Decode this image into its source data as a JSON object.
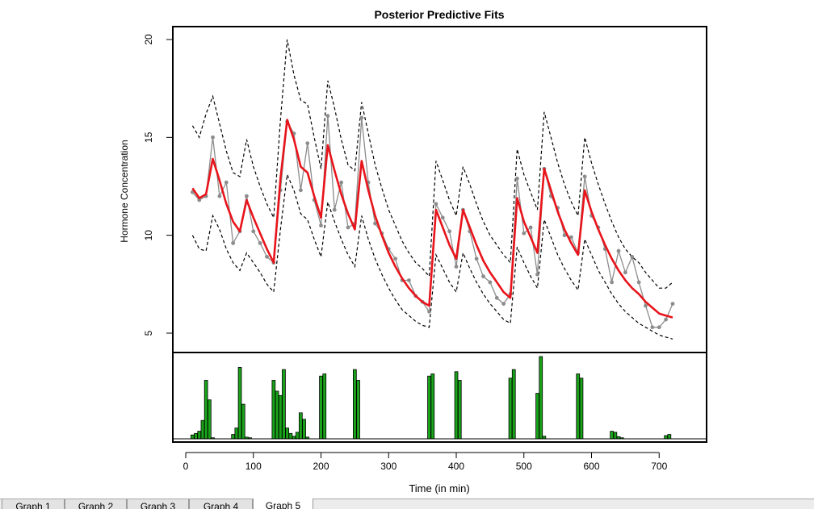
{
  "chart_data": {
    "type": "line",
    "title": "Posterior Predictive Fits",
    "xlabel": "Time (in min)",
    "ylabel": "Hormone Concentration",
    "xlim": [
      0,
      720
    ],
    "ylim": [
      4,
      20.5
    ],
    "xticks": [
      0,
      100,
      200,
      300,
      400,
      500,
      600,
      700
    ],
    "yticks": [
      5,
      10,
      15,
      20
    ],
    "x": [
      10,
      20,
      30,
      40,
      50,
      60,
      70,
      80,
      90,
      100,
      110,
      120,
      130,
      140,
      150,
      160,
      170,
      180,
      190,
      200,
      210,
      220,
      230,
      240,
      250,
      260,
      270,
      280,
      290,
      300,
      310,
      320,
      330,
      340,
      350,
      360,
      370,
      380,
      390,
      400,
      410,
      420,
      430,
      440,
      450,
      460,
      470,
      480,
      490,
      500,
      510,
      520,
      530,
      540,
      550,
      560,
      570,
      580,
      590,
      600,
      610,
      620,
      630,
      640,
      650,
      660,
      670,
      680,
      690,
      700,
      710,
      720
    ],
    "series": [
      {
        "role": "observed",
        "color": "#8c8c8c",
        "values": [
          12.2,
          11.8,
          12.0,
          15.0,
          12.0,
          12.7,
          9.6,
          10.2,
          12.0,
          10.2,
          9.6,
          8.9,
          8.6,
          12.3,
          15.8,
          15.2,
          12.3,
          14.7,
          11.8,
          10.5,
          16.1,
          11.3,
          12.7,
          10.4,
          10.6,
          16.0,
          12.7,
          10.6,
          10.1,
          9.3,
          8.8,
          7.7,
          7.7,
          6.9,
          6.6,
          6.1,
          11.6,
          10.9,
          10.2,
          8.4,
          11.3,
          10.2,
          8.8,
          7.9,
          7.6,
          6.8,
          6.5,
          7.0,
          12.9,
          10.1,
          10.4,
          8.0,
          13.4,
          12.0,
          11.4,
          10.0,
          9.9,
          9.1,
          13.0,
          11.0,
          10.4,
          9.3,
          7.6,
          9.2,
          8.1,
          8.9,
          7.6,
          6.4,
          5.3,
          5.3,
          5.7,
          6.5
        ]
      },
      {
        "role": "posterior mean",
        "color": "#e8141b",
        "values": [
          12.4,
          11.9,
          12.1,
          13.9,
          12.8,
          11.6,
          10.7,
          10.2,
          11.8,
          10.9,
          10.1,
          9.3,
          8.6,
          12.9,
          15.9,
          14.9,
          13.5,
          13.2,
          12.0,
          10.9,
          14.6,
          13.3,
          12.1,
          11.1,
          10.3,
          13.8,
          12.3,
          11.0,
          10.0,
          9.1,
          8.4,
          7.8,
          7.3,
          6.9,
          6.6,
          6.4,
          11.3,
          10.4,
          9.5,
          8.8,
          11.3,
          10.4,
          9.5,
          8.7,
          8.1,
          7.6,
          7.1,
          6.8,
          11.9,
          10.7,
          9.9,
          9.1,
          13.4,
          12.3,
          11.2,
          10.3,
          9.6,
          9.0,
          12.3,
          11.2,
          10.3,
          9.5,
          8.8,
          8.2,
          7.7,
          7.3,
          7.0,
          6.6,
          6.3,
          6.0,
          5.9,
          5.8
        ]
      },
      {
        "role": "upper band",
        "color": "#000000",
        "values": [
          15.6,
          15.0,
          16.2,
          17.1,
          15.7,
          14.3,
          13.2,
          13.0,
          14.9,
          13.5,
          12.5,
          11.6,
          10.9,
          15.9,
          20.0,
          18.2,
          16.9,
          16.7,
          15.0,
          13.4,
          17.9,
          16.5,
          14.9,
          13.6,
          13.3,
          16.8,
          15.2,
          13.6,
          12.4,
          11.3,
          10.5,
          9.7,
          9.1,
          8.6,
          8.3,
          7.9,
          13.8,
          12.8,
          11.8,
          11.0,
          13.5,
          12.6,
          11.6,
          10.7,
          10.0,
          9.5,
          9.0,
          8.6,
          14.4,
          13.1,
          12.2,
          11.3,
          16.3,
          15.0,
          13.7,
          12.6,
          11.7,
          11.0,
          15.0,
          13.7,
          12.6,
          11.6,
          10.7,
          9.9,
          9.3,
          8.9,
          8.6,
          8.1,
          7.7,
          7.3,
          7.3,
          7.6
        ]
      },
      {
        "role": "lower band",
        "color": "#000000",
        "values": [
          10.0,
          9.3,
          9.2,
          11.0,
          10.3,
          9.3,
          8.6,
          8.2,
          9.1,
          8.6,
          8.1,
          7.5,
          7.1,
          10.3,
          13.1,
          12.3,
          11.1,
          10.8,
          9.8,
          8.9,
          11.7,
          10.7,
          9.8,
          9.0,
          8.4,
          11.0,
          9.8,
          8.8,
          8.0,
          7.3,
          6.7,
          6.2,
          5.9,
          5.6,
          5.4,
          5.3,
          9.0,
          8.3,
          7.6,
          7.1,
          9.1,
          8.3,
          7.6,
          7.0,
          6.5,
          6.1,
          5.7,
          5.5,
          9.4,
          8.6,
          7.9,
          7.3,
          10.8,
          9.9,
          9.0,
          8.3,
          7.7,
          7.2,
          9.8,
          9.0,
          8.2,
          7.6,
          7.0,
          6.5,
          6.1,
          5.8,
          5.5,
          5.3,
          5.1,
          4.9,
          4.8,
          4.7
        ]
      }
    ],
    "pulses": {
      "color": "#1aa31a",
      "relative_max": 3.8,
      "items": [
        {
          "x": 10,
          "v": 0.18
        },
        {
          "x": 15,
          "v": 0.25
        },
        {
          "x": 20,
          "v": 0.35
        },
        {
          "x": 25,
          "v": 0.85
        },
        {
          "x": 30,
          "v": 2.7
        },
        {
          "x": 35,
          "v": 1.8
        },
        {
          "x": 40,
          "v": 0.05
        },
        {
          "x": 70,
          "v": 0.2
        },
        {
          "x": 75,
          "v": 0.5
        },
        {
          "x": 80,
          "v": 3.3
        },
        {
          "x": 85,
          "v": 1.6
        },
        {
          "x": 90,
          "v": 0.08
        },
        {
          "x": 95,
          "v": 0.05
        },
        {
          "x": 130,
          "v": 2.7
        },
        {
          "x": 135,
          "v": 2.2
        },
        {
          "x": 140,
          "v": 2.0
        },
        {
          "x": 145,
          "v": 3.2
        },
        {
          "x": 150,
          "v": 0.5
        },
        {
          "x": 155,
          "v": 0.25
        },
        {
          "x": 160,
          "v": 0.12
        },
        {
          "x": 165,
          "v": 0.3
        },
        {
          "x": 170,
          "v": 1.2
        },
        {
          "x": 175,
          "v": 0.9
        },
        {
          "x": 180,
          "v": 0.08
        },
        {
          "x": 200,
          "v": 2.9
        },
        {
          "x": 205,
          "v": 3.0
        },
        {
          "x": 250,
          "v": 3.2
        },
        {
          "x": 255,
          "v": 2.7
        },
        {
          "x": 360,
          "v": 2.9
        },
        {
          "x": 365,
          "v": 3.0
        },
        {
          "x": 400,
          "v": 3.1
        },
        {
          "x": 405,
          "v": 2.7
        },
        {
          "x": 480,
          "v": 2.8
        },
        {
          "x": 485,
          "v": 3.2
        },
        {
          "x": 520,
          "v": 2.1
        },
        {
          "x": 525,
          "v": 3.8
        },
        {
          "x": 530,
          "v": 0.12
        },
        {
          "x": 580,
          "v": 3.0
        },
        {
          "x": 585,
          "v": 2.8
        },
        {
          "x": 630,
          "v": 0.35
        },
        {
          "x": 635,
          "v": 0.3
        },
        {
          "x": 640,
          "v": 0.1
        },
        {
          "x": 645,
          "v": 0.05
        },
        {
          "x": 710,
          "v": 0.15
        },
        {
          "x": 715,
          "v": 0.2
        }
      ]
    }
  },
  "tabs": [
    {
      "label": "Graph 1",
      "active": false
    },
    {
      "label": "Graph 2",
      "active": false
    },
    {
      "label": "Graph 3",
      "active": false
    },
    {
      "label": "Graph 4",
      "active": false
    },
    {
      "label": "Graph 5",
      "active": true
    }
  ]
}
